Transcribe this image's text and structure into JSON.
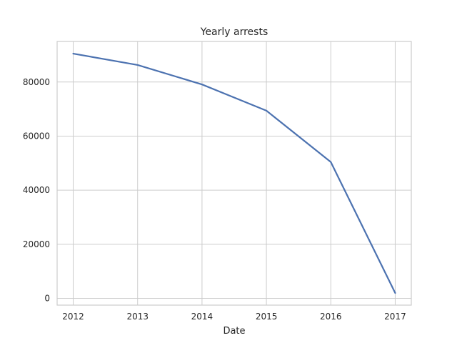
{
  "chart_data": {
    "type": "line",
    "title": "Yearly arrests",
    "xlabel": "Date",
    "ylabel": "",
    "x": [
      2012,
      2013,
      2014,
      2015,
      2016,
      2017
    ],
    "x_tick_labels": [
      "2012",
      "2013",
      "2014",
      "2015",
      "2016",
      "2017"
    ],
    "y_ticks": [
      0,
      20000,
      40000,
      60000,
      80000
    ],
    "y_tick_labels": [
      "0",
      "20000",
      "40000",
      "60000",
      "80000"
    ],
    "xlim": [
      2011.75,
      2017.25
    ],
    "ylim": [
      -2500,
      95000
    ],
    "grid": true,
    "series": [
      {
        "values": [
          90500,
          86300,
          79100,
          69400,
          50400,
          2000
        ],
        "color": "#4c72b0"
      }
    ]
  }
}
